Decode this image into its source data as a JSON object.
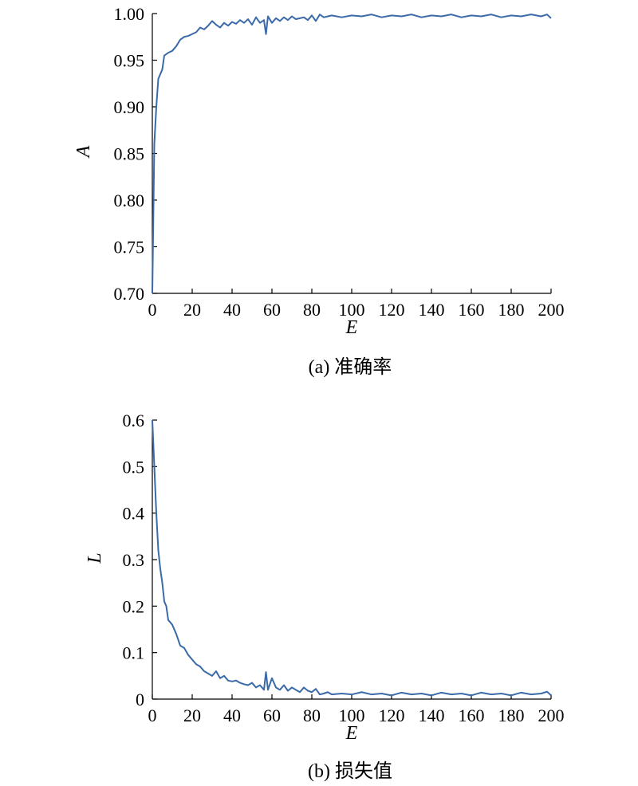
{
  "chart_data": [
    {
      "type": "line",
      "caption": "(a) 准确率",
      "xlabel": "E",
      "ylabel": "A",
      "xlim": [
        0,
        200
      ],
      "ylim": [
        0.7,
        1.0
      ],
      "xticks": [
        0,
        20,
        40,
        60,
        80,
        100,
        120,
        140,
        160,
        180,
        200
      ],
      "yticks": [
        "0.70",
        "0.75",
        "0.80",
        "0.85",
        "0.90",
        "0.95",
        "1.00"
      ],
      "grid": false,
      "color": "#3a6aa8",
      "series": [
        {
          "x": [
            0,
            1,
            2,
            3,
            4,
            5,
            6,
            8,
            10,
            12,
            14,
            16,
            18,
            20,
            22,
            24,
            26,
            28,
            30,
            32,
            34,
            36,
            38,
            40,
            42,
            44,
            46,
            48,
            50,
            52,
            54,
            56,
            57,
            58,
            60,
            62,
            64,
            66,
            68,
            70,
            72,
            74,
            76,
            78,
            80,
            82,
            84,
            86,
            88,
            90,
            95,
            100,
            105,
            110,
            115,
            120,
            125,
            130,
            135,
            140,
            145,
            150,
            155,
            160,
            165,
            170,
            175,
            180,
            185,
            190,
            195,
            198,
            200
          ],
          "y": [
            0.7,
            0.86,
            0.9,
            0.93,
            0.935,
            0.94,
            0.955,
            0.958,
            0.96,
            0.965,
            0.972,
            0.975,
            0.976,
            0.978,
            0.98,
            0.985,
            0.983,
            0.987,
            0.992,
            0.988,
            0.985,
            0.99,
            0.987,
            0.991,
            0.989,
            0.993,
            0.99,
            0.994,
            0.988,
            0.996,
            0.99,
            0.993,
            0.978,
            0.997,
            0.99,
            0.995,
            0.992,
            0.996,
            0.993,
            0.997,
            0.994,
            0.995,
            0.996,
            0.993,
            0.998,
            0.992,
            0.999,
            0.996,
            0.997,
            0.998,
            0.996,
            0.998,
            0.997,
            0.999,
            0.996,
            0.998,
            0.997,
            0.999,
            0.996,
            0.998,
            0.997,
            0.999,
            0.996,
            0.998,
            0.997,
            0.999,
            0.996,
            0.998,
            0.997,
            0.999,
            0.997,
            0.999,
            0.995
          ]
        }
      ]
    },
    {
      "type": "line",
      "caption": "(b) 损失值",
      "xlabel": "E",
      "ylabel": "L",
      "xlim": [
        0,
        200
      ],
      "ylim": [
        0,
        0.6
      ],
      "xticks": [
        0,
        20,
        40,
        60,
        80,
        100,
        120,
        140,
        160,
        180,
        200
      ],
      "yticks": [
        "0",
        "0.1",
        "0.2",
        "0.3",
        "0.4",
        "0.5",
        "0.6"
      ],
      "grid": false,
      "color": "#3a6aa8",
      "series": [
        {
          "x": [
            0,
            1,
            2,
            3,
            4,
            5,
            6,
            7,
            8,
            10,
            12,
            14,
            16,
            18,
            20,
            22,
            24,
            26,
            28,
            30,
            32,
            34,
            36,
            38,
            40,
            42,
            44,
            46,
            48,
            50,
            52,
            54,
            56,
            57,
            58,
            60,
            62,
            64,
            66,
            68,
            70,
            72,
            74,
            76,
            78,
            80,
            82,
            84,
            86,
            88,
            90,
            95,
            100,
            105,
            110,
            115,
            120,
            125,
            130,
            135,
            140,
            145,
            150,
            155,
            160,
            165,
            170,
            175,
            180,
            185,
            190,
            195,
            198,
            200
          ],
          "y": [
            0.6,
            0.5,
            0.4,
            0.32,
            0.28,
            0.25,
            0.21,
            0.2,
            0.17,
            0.16,
            0.14,
            0.115,
            0.11,
            0.095,
            0.085,
            0.075,
            0.07,
            0.06,
            0.055,
            0.05,
            0.06,
            0.045,
            0.05,
            0.04,
            0.038,
            0.04,
            0.035,
            0.032,
            0.03,
            0.035,
            0.025,
            0.03,
            0.02,
            0.058,
            0.02,
            0.045,
            0.025,
            0.02,
            0.03,
            0.018,
            0.025,
            0.02,
            0.015,
            0.025,
            0.018,
            0.015,
            0.022,
            0.01,
            0.012,
            0.015,
            0.01,
            0.012,
            0.01,
            0.015,
            0.01,
            0.012,
            0.008,
            0.014,
            0.01,
            0.012,
            0.008,
            0.014,
            0.01,
            0.012,
            0.008,
            0.014,
            0.01,
            0.012,
            0.008,
            0.014,
            0.01,
            0.012,
            0.016,
            0.008
          ]
        }
      ]
    }
  ]
}
